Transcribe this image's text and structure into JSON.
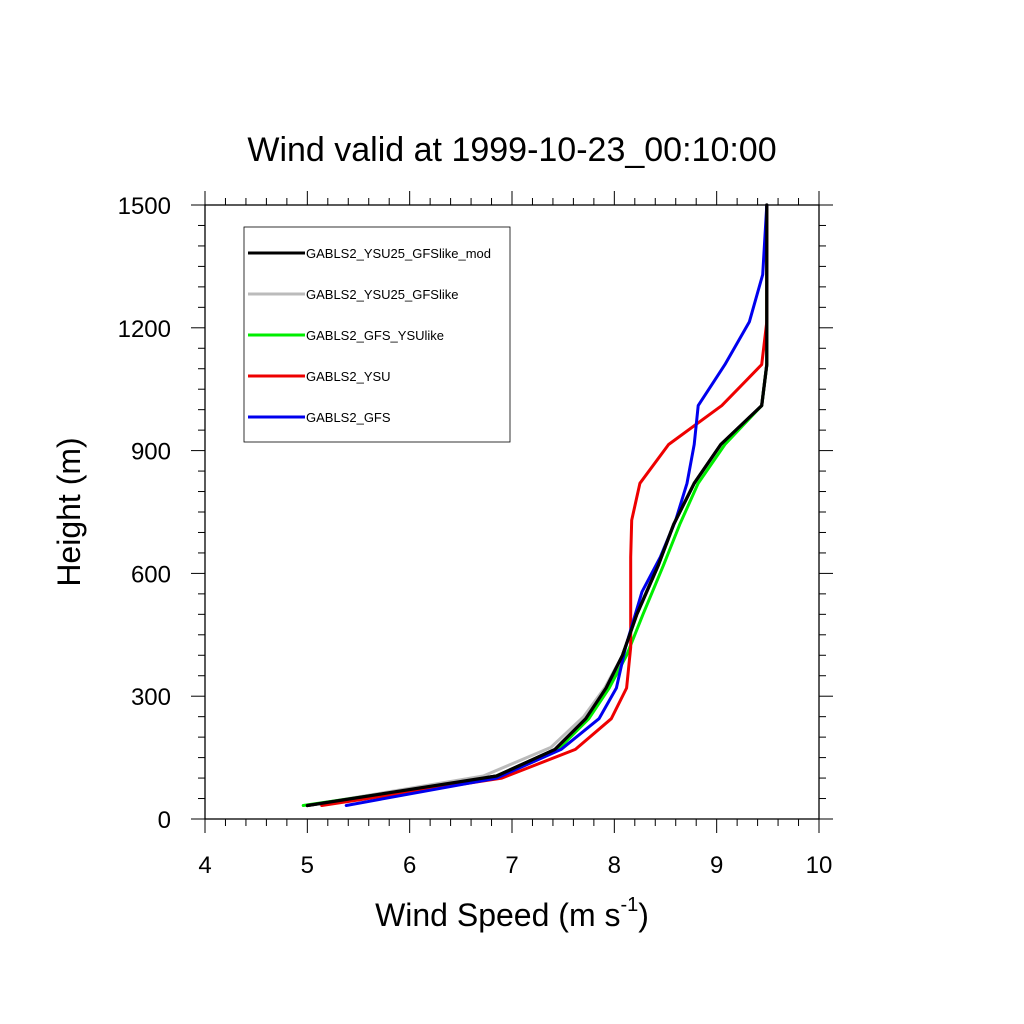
{
  "chart_data": {
    "type": "line",
    "title": "Wind valid at 1999-10-23_00:10:00",
    "xlabel": "Wind Speed (m s",
    "xlabel_sup": "-1",
    "xlabel_end": ")",
    "ylabel": "Height (m)",
    "xlim": [
      4,
      10
    ],
    "ylim": [
      0,
      1500
    ],
    "x_ticks": [
      4,
      5,
      6,
      7,
      8,
      9,
      10
    ],
    "y_ticks": [
      0,
      300,
      600,
      900,
      1200,
      1500
    ],
    "x_tick_labels": [
      "4",
      "5",
      "6",
      "7",
      "8",
      "9",
      "10"
    ],
    "y_tick_labels": [
      "0",
      "300",
      "600",
      "900",
      "1200",
      "1500"
    ],
    "grid": false,
    "legend_position": "top-left",
    "series": [
      {
        "name": "GABLS2_YSU25_GFSlike_mod",
        "color": "#000000",
        "points": [
          [
            5.0,
            33
          ],
          [
            6.85,
            105
          ],
          [
            7.42,
            170
          ],
          [
            7.72,
            245
          ],
          [
            7.92,
            320
          ],
          [
            8.08,
            400
          ],
          [
            8.22,
            500
          ],
          [
            8.43,
            620
          ],
          [
            8.58,
            720
          ],
          [
            8.78,
            820
          ],
          [
            9.04,
            915
          ],
          [
            9.44,
            1010
          ],
          [
            9.49,
            1110
          ],
          [
            9.49,
            1215
          ],
          [
            9.49,
            1330
          ],
          [
            9.49,
            1500
          ]
        ]
      },
      {
        "name": "GABLS2_YSU25_GFSlike",
        "color": "#bbbbbb",
        "points": [
          [
            5.0,
            33
          ],
          [
            6.72,
            105
          ],
          [
            7.38,
            175
          ],
          [
            7.7,
            250
          ],
          [
            7.91,
            322
          ],
          [
            8.08,
            400
          ],
          [
            8.22,
            500
          ],
          [
            8.42,
            620
          ],
          [
            8.58,
            720
          ],
          [
            8.78,
            820
          ],
          [
            9.05,
            915
          ],
          [
            9.44,
            1010
          ],
          [
            9.49,
            1110
          ],
          [
            9.49,
            1215
          ],
          [
            9.49,
            1330
          ],
          [
            9.49,
            1500
          ]
        ]
      },
      {
        "name": "GABLS2_GFS_YSUlike",
        "color": "#00ee00",
        "points": [
          [
            4.96,
            33
          ],
          [
            6.8,
            100
          ],
          [
            7.45,
            170
          ],
          [
            7.75,
            245
          ],
          [
            7.95,
            320
          ],
          [
            8.12,
            400
          ],
          [
            8.28,
            500
          ],
          [
            8.48,
            620
          ],
          [
            8.64,
            720
          ],
          [
            8.82,
            820
          ],
          [
            9.08,
            915
          ],
          [
            9.44,
            1010
          ],
          [
            9.49,
            1110
          ],
          [
            9.49,
            1215
          ],
          [
            9.49,
            1330
          ],
          [
            9.49,
            1500
          ]
        ]
      },
      {
        "name": "GABLS2_YSU",
        "color": "#ee0000",
        "points": [
          [
            5.14,
            33
          ],
          [
            6.9,
            100
          ],
          [
            7.62,
            170
          ],
          [
            7.97,
            245
          ],
          [
            8.12,
            320
          ],
          [
            8.16,
            420
          ],
          [
            8.16,
            520
          ],
          [
            8.16,
            640
          ],
          [
            8.17,
            730
          ],
          [
            8.25,
            820
          ],
          [
            8.53,
            915
          ],
          [
            9.05,
            1010
          ],
          [
            9.44,
            1110
          ],
          [
            9.49,
            1215
          ],
          [
            9.49,
            1330
          ],
          [
            9.49,
            1500
          ]
        ]
      },
      {
        "name": "GABLS2_GFS",
        "color": "#0000ee",
        "points": [
          [
            5.38,
            33
          ],
          [
            6.85,
            100
          ],
          [
            7.48,
            170
          ],
          [
            7.85,
            245
          ],
          [
            8.02,
            320
          ],
          [
            8.11,
            420
          ],
          [
            8.27,
            555
          ],
          [
            8.45,
            640
          ],
          [
            8.6,
            730
          ],
          [
            8.71,
            820
          ],
          [
            8.78,
            915
          ],
          [
            8.82,
            1010
          ],
          [
            9.08,
            1110
          ],
          [
            9.32,
            1215
          ],
          [
            9.45,
            1330
          ],
          [
            9.49,
            1500
          ]
        ]
      }
    ]
  },
  "colors": {
    "axis": "#000000",
    "background": "#ffffff",
    "legend_border": "#000000"
  }
}
